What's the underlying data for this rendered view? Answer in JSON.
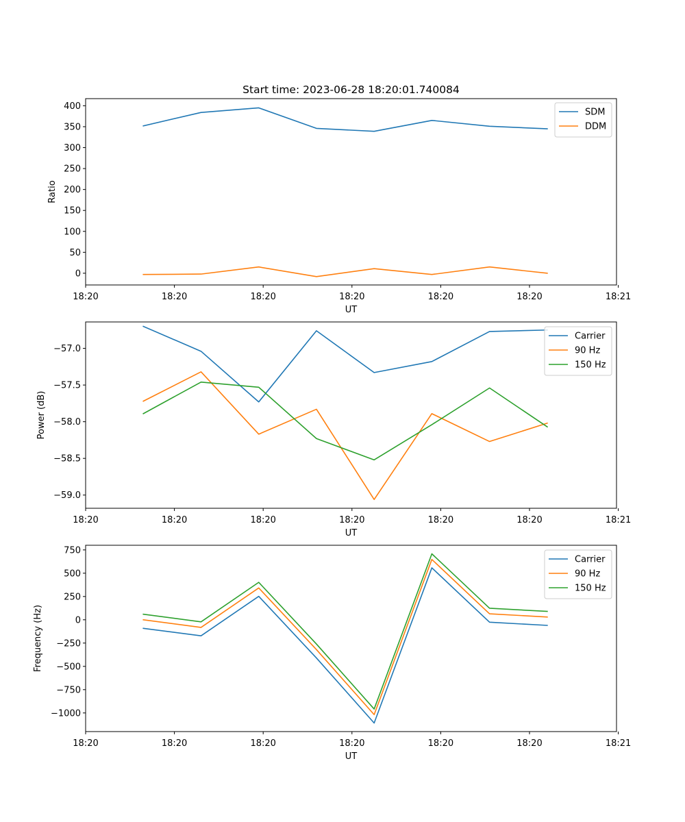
{
  "chart_data": [
    {
      "type": "line",
      "title": "Start time: 2023-06-28 18:20:01.740084",
      "xlabel": "UT",
      "ylabel": "Ratio",
      "x": [
        1,
        2,
        3,
        4,
        5,
        6,
        7,
        8
      ],
      "xlim": [
        0,
        9.2
      ],
      "xticks": [
        0,
        1.5385,
        3.0769,
        4.6154,
        6.1538,
        7.6923,
        9.2308
      ],
      "xtick_labels": [
        "18:20",
        "18:20",
        "18:20",
        "18:20",
        "18:20",
        "18:20",
        "18:21"
      ],
      "ylim": [
        -28,
        417
      ],
      "yticks": [
        0,
        50,
        100,
        150,
        200,
        250,
        300,
        350,
        400
      ],
      "ytick_labels": [
        "0",
        "50",
        "100",
        "150",
        "200",
        "250",
        "300",
        "350",
        "400"
      ],
      "legend": "top-right",
      "series": [
        {
          "name": "SDM",
          "color": "#1f77b4",
          "values": [
            352,
            384,
            395,
            346,
            339,
            365,
            351,
            345
          ]
        },
        {
          "name": "DDM",
          "color": "#ff7f0e",
          "values": [
            -3,
            -2,
            15,
            -8,
            11,
            -3,
            15,
            0
          ]
        }
      ]
    },
    {
      "type": "line",
      "title": "",
      "xlabel": "UT",
      "ylabel": "Power (dB)",
      "x": [
        1,
        2,
        3,
        4,
        5,
        6,
        7,
        8
      ],
      "xlim": [
        0,
        9.2
      ],
      "xticks": [
        0,
        1.5385,
        3.0769,
        4.6154,
        6.1538,
        7.6923,
        9.2308
      ],
      "xtick_labels": [
        "18:20",
        "18:20",
        "18:20",
        "18:20",
        "18:20",
        "18:20",
        "18:21"
      ],
      "ylim": [
        -59.18,
        -56.64
      ],
      "yticks": [
        -59.0,
        -58.5,
        -58.0,
        -57.5,
        -57.0
      ],
      "ytick_labels": [
        "−59.0",
        "−58.5",
        "−58.0",
        "−57.5",
        "−57.0"
      ],
      "legend": "top-right",
      "series": [
        {
          "name": "Carrier",
          "color": "#1f77b4",
          "values": [
            -56.7,
            -57.04,
            -57.73,
            -56.76,
            -57.33,
            -57.18,
            -56.77,
            -56.75
          ]
        },
        {
          "name": "90 Hz",
          "color": "#ff7f0e",
          "values": [
            -57.72,
            -57.32,
            -58.17,
            -57.83,
            -59.06,
            -57.89,
            -58.27,
            -58.02
          ]
        },
        {
          "name": "150 Hz",
          "color": "#2ca02c",
          "values": [
            -57.89,
            -57.46,
            -57.53,
            -58.23,
            -58.52,
            -58.04,
            -57.54,
            -58.07
          ]
        }
      ]
    },
    {
      "type": "line",
      "title": "",
      "xlabel": "UT",
      "ylabel": "Frequency (Hz)",
      "x": [
        1,
        2,
        3,
        4,
        5,
        6,
        7,
        8
      ],
      "xlim": [
        0,
        9.2
      ],
      "xticks": [
        0,
        1.5385,
        3.0769,
        4.6154,
        6.1538,
        7.6923,
        9.2308
      ],
      "xtick_labels": [
        "18:20",
        "18:20",
        "18:20",
        "18:20",
        "18:20",
        "18:20",
        "18:21"
      ],
      "ylim": [
        -1200,
        800
      ],
      "yticks": [
        -1000,
        -750,
        -500,
        -250,
        0,
        250,
        500,
        750
      ],
      "ytick_labels": [
        "−1000",
        "−750",
        "−500",
        "−250",
        "0",
        "250",
        "500",
        "750"
      ],
      "legend": "top-right",
      "series": [
        {
          "name": "Carrier",
          "color": "#1f77b4",
          "values": [
            -92,
            -172,
            252,
            -410,
            -1108,
            558,
            -26,
            -60
          ]
        },
        {
          "name": "90 Hz",
          "color": "#ff7f0e",
          "values": [
            0,
            -82,
            342,
            -320,
            -1018,
            648,
            64,
            30
          ]
        },
        {
          "name": "150 Hz",
          "color": "#2ca02c",
          "values": [
            60,
            -22,
            402,
            -260,
            -958,
            708,
            124,
            90
          ]
        }
      ]
    }
  ]
}
